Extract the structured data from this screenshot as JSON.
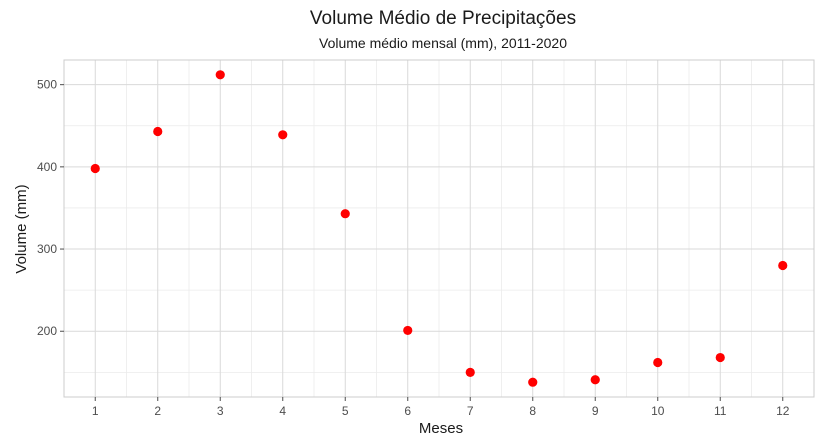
{
  "chart_data": {
    "type": "scatter",
    "title": "Volume Médio de Precipitações",
    "subtitle": "Volume médio mensal (mm), 2011-2020",
    "xlabel": "Meses",
    "ylabel": "Volume (mm)",
    "x": [
      1,
      2,
      3,
      4,
      5,
      6,
      7,
      8,
      9,
      10,
      11,
      12
    ],
    "y": [
      398,
      443,
      512,
      439,
      343,
      201,
      150,
      138,
      141,
      162,
      168,
      280
    ],
    "xlim": [
      0.5,
      12.5
    ],
    "ylim": [
      120,
      530
    ],
    "x_ticks": [
      "1",
      "2",
      "3",
      "4",
      "5",
      "6",
      "7",
      "8",
      "9",
      "10",
      "11",
      "12"
    ],
    "y_ticks": [
      "200",
      "300",
      "400",
      "500"
    ],
    "grid": true,
    "point_color": "#ff0000"
  }
}
